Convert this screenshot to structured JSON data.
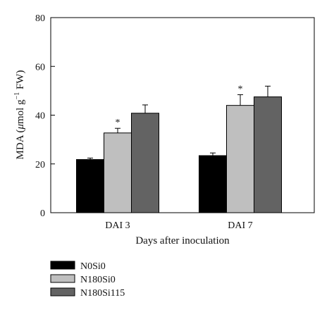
{
  "chart_data": {
    "type": "bar",
    "categories": [
      "DAI 3",
      "DAI 7"
    ],
    "series": [
      {
        "name": "N0Si0",
        "values": [
          21.8,
          23.4
        ],
        "errors": [
          0.6,
          1.1
        ],
        "color": "#000000"
      },
      {
        "name": "N180Si0",
        "values": [
          32.7,
          44.0
        ],
        "errors": [
          1.9,
          4.4
        ],
        "color": "#bfbfbf"
      },
      {
        "name": "N180Si115",
        "values": [
          40.8,
          47.5
        ],
        "errors": [
          3.4,
          4.4
        ],
        "color": "#636363"
      }
    ],
    "annotations": [
      {
        "category": "DAI 3",
        "series": "N180Si0",
        "text": "*"
      },
      {
        "category": "DAI 7",
        "series": "N180Si0",
        "text": "*"
      }
    ],
    "xlabel": "Days after inoculation",
    "ylabel_prefix": "MDA (",
    "ylabel_mu": "μ",
    "ylabel_unit": "mol g",
    "ylabel_exp": "−1",
    "ylabel_suffix": " FW)",
    "ylim": [
      0,
      80
    ],
    "yticks": [
      0,
      20,
      40,
      60,
      80
    ],
    "grid": false,
    "legend_position": "bottom-left"
  }
}
